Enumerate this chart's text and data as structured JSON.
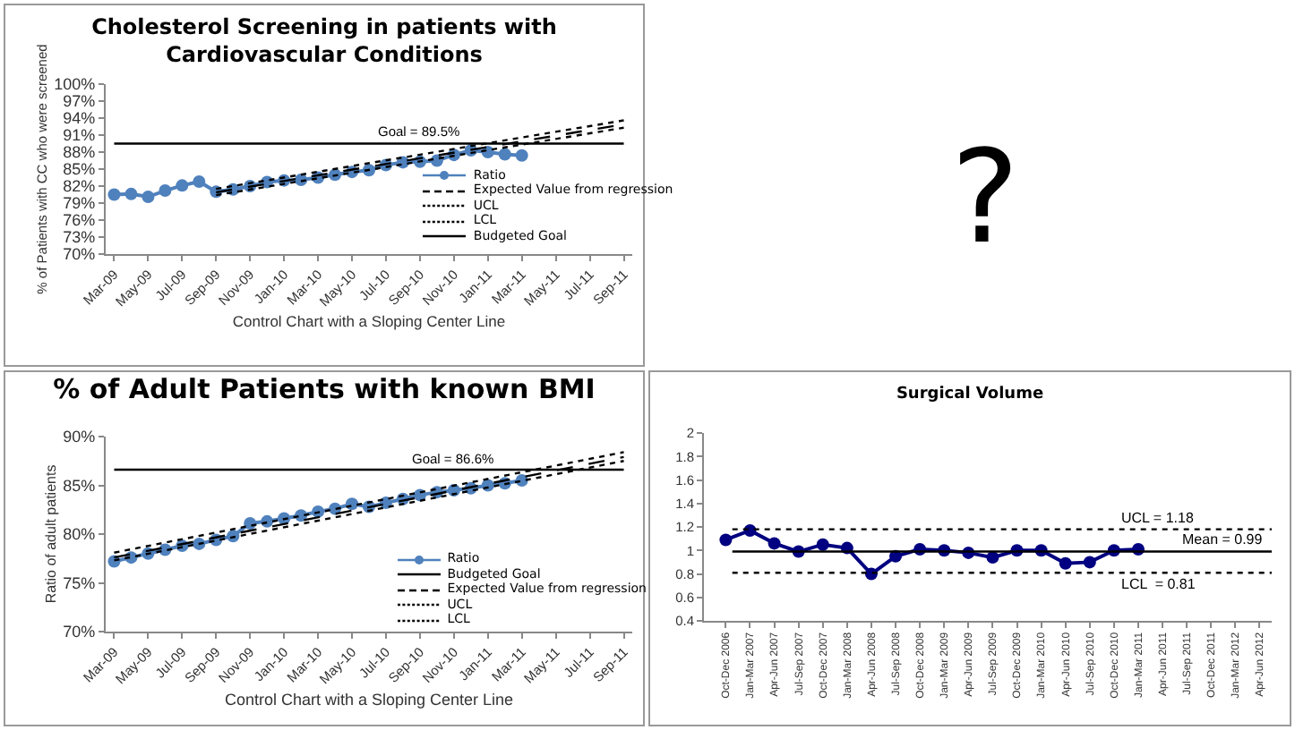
{
  "chart_data": [
    {
      "type": "line",
      "title": "Cholesterol Screening in patients with Cardiovascular Conditions",
      "xlabel": "Control Chart with a Sloping Center Line",
      "ylabel": "% of Patients with CC who were screened",
      "categories": [
        "Mar-09",
        null,
        "May-09",
        null,
        "Jul-09",
        null,
        "Sep-09",
        null,
        "Nov-09",
        null,
        "Jan-10",
        null,
        "Mar-10",
        null,
        "May-10",
        null,
        "Jul-10",
        null,
        "Sep-10",
        null,
        "Nov-10",
        null,
        "Jan-11",
        null,
        "Mar-11",
        null,
        "May-11",
        null,
        "Jul-11",
        null,
        "Sep-11"
      ],
      "ylim": [
        70,
        100
      ],
      "yticks": [
        {
          "value": 70,
          "label": "70%"
        },
        {
          "value": 73,
          "label": "73%"
        },
        {
          "value": 76,
          "label": "76%"
        },
        {
          "value": 79,
          "label": "79%"
        },
        {
          "value": 82,
          "label": "82%"
        },
        {
          "value": 85,
          "label": "85%"
        },
        {
          "value": 88,
          "label": "88%"
        },
        {
          "value": 91,
          "label": "91%"
        },
        {
          "value": 94,
          "label": "94%"
        },
        {
          "value": 97,
          "label": "97%"
        },
        {
          "value": 100,
          "label": "100%"
        }
      ],
      "legend": "right",
      "annotations": [
        {
          "text": "Goal = 89.5%",
          "x": "Sep-10",
          "y": 89.5
        }
      ],
      "series": [
        {
          "name": "Ratio",
          "color": "#4f81bd",
          "marker": "circle",
          "line_style": "solid",
          "values": [
            80.5,
            80.6,
            80.1,
            81.2,
            82.1,
            82.8,
            81.0,
            81.4,
            82.0,
            82.7,
            83.0,
            83.1,
            83.5,
            84.0,
            84.5,
            84.8,
            85.7,
            86.2,
            86.3,
            86.5,
            87.5,
            88.3,
            88.0,
            87.6,
            87.4,
            null,
            null,
            null,
            null,
            null,
            null
          ]
        },
        {
          "name": "Expected Value from regression",
          "color": "#000000",
          "line_style": "dashed",
          "x": [
            "Sep-09",
            "Sep-11"
          ],
          "values": [
            80.9,
            92.9
          ]
        },
        {
          "name": "UCL",
          "color": "#000000",
          "line_style": "dotted",
          "x": [
            "Sep-09",
            "Sep-11"
          ],
          "values": [
            81.5,
            93.6
          ]
        },
        {
          "name": "LCL",
          "color": "#000000",
          "line_style": "dotted",
          "x": [
            "Sep-09",
            "Sep-11"
          ],
          "values": [
            80.4,
            92.3
          ]
        },
        {
          "name": "Budgeted Goal",
          "color": "#000000",
          "line_style": "solid",
          "x": [
            "Mar-09",
            "Sep-11"
          ],
          "values": [
            89.5,
            89.5
          ]
        }
      ]
    },
    {
      "type": "other",
      "annotations": [
        "?"
      ]
    },
    {
      "type": "line",
      "title": "% of Adult Patients with known BMI",
      "xlabel": "Control Chart with a Sloping Center Line",
      "ylabel": "Ratio of adult patients",
      "categories": [
        "Mar-09",
        null,
        "May-09",
        null,
        "Jul-09",
        null,
        "Sep-09",
        null,
        "Nov-09",
        null,
        "Jan-10",
        null,
        "Mar-10",
        null,
        "May-10",
        null,
        "Jul-10",
        null,
        "Sep-10",
        null,
        "Nov-10",
        null,
        "Jan-11",
        null,
        "Mar-11",
        null,
        "May-11",
        null,
        "Jul-11",
        null,
        "Sep-11"
      ],
      "ylim": [
        70,
        90
      ],
      "yticks": [
        {
          "value": 70,
          "label": "70%"
        },
        {
          "value": 75,
          "label": "75%"
        },
        {
          "value": 80,
          "label": "80%"
        },
        {
          "value": 85,
          "label": "85%"
        },
        {
          "value": 90,
          "label": "90%"
        }
      ],
      "legend": "bottom right",
      "annotations": [
        {
          "text": "Goal = 86.6%",
          "x": "Nov-10",
          "y": 86.6
        }
      ],
      "series": [
        {
          "name": "Ratio",
          "color": "#4f81bd",
          "marker": "circle",
          "line_style": "solid",
          "values": [
            77.2,
            77.6,
            78.0,
            78.4,
            78.8,
            79.0,
            79.4,
            79.8,
            81.1,
            81.3,
            81.6,
            81.9,
            82.3,
            82.6,
            83.1,
            82.8,
            83.2,
            83.6,
            84.0,
            84.3,
            84.5,
            84.7,
            85.0,
            85.2,
            85.5,
            null,
            null,
            null,
            null,
            null,
            null
          ]
        },
        {
          "name": "Budgeted Goal",
          "color": "#000000",
          "line_style": "solid",
          "x": [
            "Mar-09",
            "Sep-11"
          ],
          "values": [
            86.6,
            86.6
          ]
        },
        {
          "name": "Expected Value from regression",
          "color": "#000000",
          "line_style": "dashed",
          "x": [
            "Mar-09",
            "Sep-11"
          ],
          "values": [
            77.6,
            87.9
          ]
        },
        {
          "name": "UCL",
          "color": "#000000",
          "line_style": "dotted",
          "x": [
            "Mar-09",
            "Sep-11"
          ],
          "values": [
            78.1,
            88.4
          ]
        },
        {
          "name": "LCL",
          "color": "#000000",
          "line_style": "dotted",
          "x": [
            "Mar-09",
            "Sep-11"
          ],
          "values": [
            77.3,
            87.5
          ]
        }
      ]
    },
    {
      "type": "line",
      "title": "Surgical Volume",
      "categories": [
        "Oct-Dec 2006",
        "Jan-Mar 2007",
        "Apr-Jun 2007",
        "Jul-Sep 2007",
        "Oct-Dec 2007",
        "Jan-Mar 2008",
        "Apr-Jun 2008",
        "Jul-Sep 2008",
        "Oct-Dec 2008",
        "Jan-Mar 2009",
        "Apr-Jun 2009",
        "Jul-Sep 2009",
        "Oct-Dec 2009",
        "Jan-Mar 2010",
        "Apr-Jun 2010",
        "Jul-Sep 2010",
        "Oct-Dec 2010",
        "Jan-Mar 2011",
        "Apr-Jun 2011",
        "Jul-Sep 2011",
        "Oct-Dec 2011",
        "Jan-Mar 2012",
        "Apr-Jun 2012"
      ],
      "values": [
        1.09,
        1.17,
        1.06,
        0.99,
        1.05,
        1.02,
        0.8,
        0.95,
        1.01,
        1.0,
        0.98,
        0.94,
        1.0,
        1.0,
        0.89,
        0.9,
        1.0,
        1.01,
        null,
        null,
        null,
        null,
        null
      ],
      "color": "#000080",
      "marker": "circle",
      "ylim": [
        0.4,
        2
      ],
      "yticks": [
        0.4,
        0.6,
        0.8,
        1,
        1.2,
        1.4,
        1.6,
        1.8,
        2
      ],
      "ref_lines": [
        {
          "axis": "y",
          "value": 1.18,
          "label": "UCL = 1.18",
          "line_style": "dotted",
          "color": "#000000"
        },
        {
          "axis": "y",
          "value": 0.99,
          "label": "Mean = 0.99",
          "line_style": "solid",
          "color": "#000000"
        },
        {
          "axis": "y",
          "value": 0.81,
          "label": "LCL  = 0.81",
          "line_style": "dotted",
          "color": "#000000"
        }
      ]
    }
  ]
}
